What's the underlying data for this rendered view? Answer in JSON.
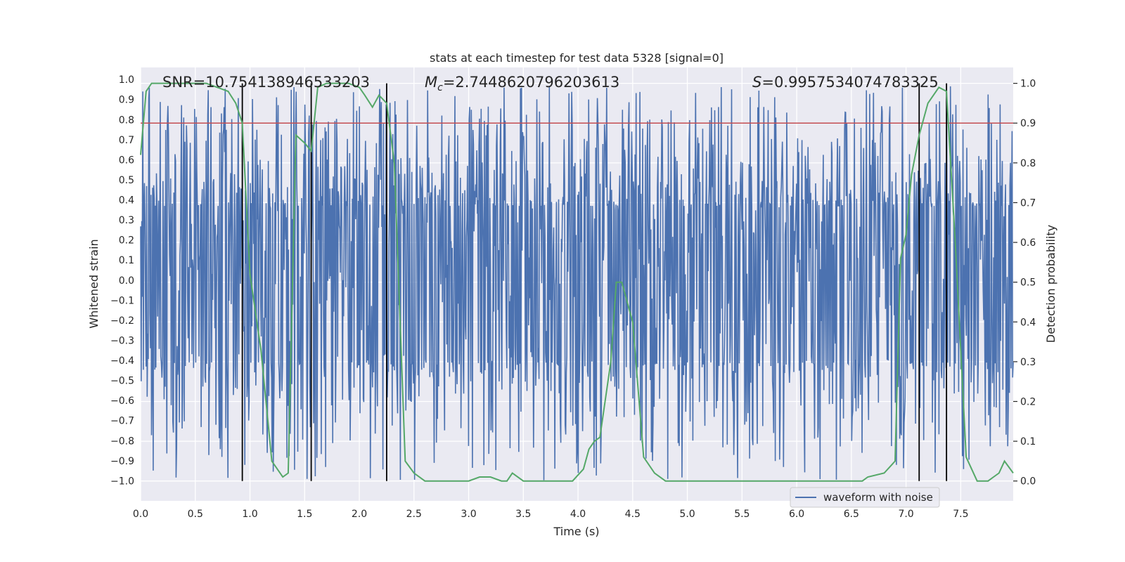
{
  "chart_data": {
    "type": "line",
    "title": "stats at each timestep for test data 5328 [signal=0]",
    "xlabel": "Time (s)",
    "ylabel_left": "Whitened strain",
    "ylabel_right": "Detection probability",
    "xlim": [
      0.0,
      7.98
    ],
    "ylim_left": [
      -1.1,
      1.06
    ],
    "ylim_right": [
      -0.05,
      1.04
    ],
    "x_ticks": [
      "0.0",
      "0.5",
      "1.0",
      "1.5",
      "2.0",
      "2.5",
      "3.0",
      "3.5",
      "4.0",
      "4.5",
      "5.0",
      "5.5",
      "6.0",
      "6.5",
      "7.0",
      "7.5"
    ],
    "x_tick_values": [
      0,
      0.5,
      1,
      1.5,
      2,
      2.5,
      3,
      3.5,
      4,
      4.5,
      5,
      5.5,
      6,
      6.5,
      7,
      7.5
    ],
    "y_left_ticks": [
      "1.0",
      "0.9",
      "0.8",
      "0.7",
      "0.6",
      "0.5",
      "0.4",
      "0.3",
      "0.2",
      "0.1",
      "0.0",
      "-0.1",
      "-0.2",
      "-0.3",
      "-0.4",
      "-0.5",
      "-0.6",
      "-0.7",
      "-0.8",
      "-0.9",
      "-1.0"
    ],
    "y_left_tick_values": [
      1.0,
      0.9,
      0.8,
      0.7,
      0.6,
      0.5,
      0.4,
      0.3,
      0.2,
      0.1,
      0.0,
      -0.1,
      -0.2,
      -0.3,
      -0.4,
      -0.5,
      -0.6,
      -0.7,
      -0.8,
      -0.9,
      -1.0
    ],
    "y_right_ticks": [
      "1.0",
      "0.9",
      "0.8",
      "0.7",
      "0.6",
      "0.5",
      "0.4",
      "0.3",
      "0.2",
      "0.1",
      "0.0"
    ],
    "y_right_tick_values": [
      1.0,
      0.9,
      0.8,
      0.7,
      0.6,
      0.5,
      0.4,
      0.3,
      0.2,
      0.1,
      0.0
    ],
    "annotations": {
      "snr": "SNR=10.754138946533203",
      "mc_symbol": "M",
      "mc_sub": "c",
      "mc_value": "=2.7448620796203613",
      "s_symbol": "S",
      "s_value": "=0.9957534074783325"
    },
    "legend": {
      "label": "waveform with noise",
      "position": "lower-right"
    },
    "threshold": {
      "value": 0.9,
      "axis": "right",
      "color": "#c44e52"
    },
    "vertical_markers": [
      0.93,
      1.56,
      2.25,
      7.12,
      7.37
    ],
    "waveform": {
      "name": "waveform with noise",
      "color": "#4c72b0",
      "n_samples": 1600,
      "band": [
        -0.41,
        0.37
      ],
      "peak_range": [
        -1.0,
        0.97
      ]
    },
    "detection_probability": {
      "name": "detection probability",
      "color": "#55a868",
      "x": [
        0.0,
        0.05,
        0.1,
        0.2,
        0.3,
        0.4,
        0.5,
        0.6,
        0.7,
        0.8,
        0.87,
        0.93,
        1.0,
        1.1,
        1.2,
        1.3,
        1.35,
        1.42,
        1.5,
        1.56,
        1.62,
        1.7,
        1.8,
        1.9,
        2.0,
        2.05,
        2.12,
        2.18,
        2.25,
        2.32,
        2.42,
        2.5,
        2.6,
        2.7,
        2.8,
        3.0,
        3.1,
        3.2,
        3.3,
        3.35,
        3.4,
        3.5,
        3.6,
        3.8,
        3.95,
        4.05,
        4.1,
        4.15,
        4.2,
        4.3,
        4.35,
        4.4,
        4.5,
        4.6,
        4.7,
        4.8,
        5.0,
        5.2,
        5.5,
        6.0,
        6.4,
        6.6,
        6.65,
        6.8,
        6.9,
        6.95,
        7.0,
        7.05,
        7.12,
        7.2,
        7.3,
        7.37,
        7.45,
        7.55,
        7.65,
        7.7,
        7.75,
        7.8,
        7.85,
        7.9,
        7.98
      ],
      "y": [
        0.82,
        0.98,
        1.0,
        1.0,
        1.0,
        1.0,
        1.0,
        1.0,
        0.99,
        0.98,
        0.95,
        0.9,
        0.52,
        0.33,
        0.05,
        0.01,
        0.02,
        0.87,
        0.85,
        0.83,
        0.99,
        1.0,
        1.0,
        1.0,
        0.99,
        0.97,
        0.94,
        0.97,
        0.95,
        0.8,
        0.05,
        0.02,
        0.0,
        0.0,
        0.0,
        0.0,
        0.01,
        0.01,
        0.0,
        0.0,
        0.02,
        0.0,
        0.0,
        0.0,
        0.0,
        0.03,
        0.08,
        0.1,
        0.11,
        0.3,
        0.5,
        0.5,
        0.4,
        0.06,
        0.02,
        0.0,
        0.0,
        0.0,
        0.0,
        0.0,
        0.0,
        0.0,
        0.01,
        0.02,
        0.05,
        0.56,
        0.62,
        0.77,
        0.87,
        0.95,
        0.99,
        0.98,
        0.6,
        0.06,
        0.0,
        0.0,
        0.0,
        0.01,
        0.02,
        0.05,
        0.02
      ]
    }
  }
}
